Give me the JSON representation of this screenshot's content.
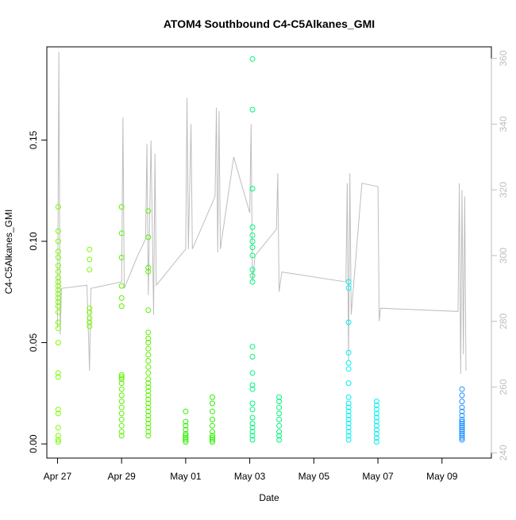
{
  "chart_data": {
    "type": "scatter",
    "title": "ATOM4 Southbound C4-C5Alkanes_GMI",
    "xlabel": "Date",
    "ylabel": "C4-C5Alkanes_GMI",
    "x_ticks": [
      "Apr 27",
      "Apr 29",
      "May 01",
      "May 03",
      "May 05",
      "May 07",
      "May 09"
    ],
    "y_ticks": [
      "0.00",
      "0.05",
      "0.10",
      "0.15"
    ],
    "y2_ticks": [
      "240",
      "260",
      "280",
      "300",
      "320",
      "340",
      "360"
    ],
    "xlim": [
      "2018-04-26T16:00",
      "2018-05-10T13:00"
    ],
    "ylim": [
      -0.007,
      0.196
    ],
    "y2lim": [
      238.4,
      363.5
    ],
    "grid": false,
    "legend": "none",
    "point_marker": "open-circle",
    "color_scale": "time: green -> cyan -> blue",
    "line_color": "#bebebe",
    "series": [
      {
        "color": "#7CFC00",
        "points": [
          [
            "2018-04-27T00:30",
            0.117
          ],
          [
            "2018-04-27T00:30",
            0.105
          ],
          [
            "2018-04-27T00:30",
            0.1
          ],
          [
            "2018-04-27T00:30",
            0.095
          ],
          [
            "2018-04-27T00:30",
            0.092
          ],
          [
            "2018-04-27T00:30",
            0.088
          ],
          [
            "2018-04-27T00:30",
            0.085
          ],
          [
            "2018-04-27T00:30",
            0.082
          ],
          [
            "2018-04-27T00:30",
            0.08
          ],
          [
            "2018-04-27T00:30",
            0.078
          ],
          [
            "2018-04-27T00:30",
            0.076
          ],
          [
            "2018-04-27T00:30",
            0.074
          ],
          [
            "2018-04-27T00:30",
            0.072
          ],
          [
            "2018-04-27T00:30",
            0.07
          ],
          [
            "2018-04-27T00:30",
            0.068
          ],
          [
            "2018-04-27T00:30",
            0.065
          ],
          [
            "2018-04-27T00:30",
            0.06
          ],
          [
            "2018-04-27T00:30",
            0.057
          ],
          [
            "2018-04-27T00:30",
            0.05
          ],
          [
            "2018-04-27T00:30",
            0.035
          ],
          [
            "2018-04-27T00:30",
            0.033
          ],
          [
            "2018-04-27T00:30",
            0.017
          ],
          [
            "2018-04-27T00:30",
            0.015
          ],
          [
            "2018-04-27T00:30",
            0.008
          ],
          [
            "2018-04-27T00:30",
            0.004
          ],
          [
            "2018-04-27T00:30",
            0.002
          ],
          [
            "2018-04-27T00:30",
            0.001
          ],
          [
            "2018-04-28T00:00",
            0.096
          ],
          [
            "2018-04-28T00:00",
            0.091
          ],
          [
            "2018-04-28T00:00",
            0.086
          ],
          [
            "2018-04-28T00:00",
            0.067
          ],
          [
            "2018-04-28T00:00",
            0.065
          ],
          [
            "2018-04-28T00:00",
            0.062
          ],
          [
            "2018-04-28T00:00",
            0.06
          ],
          [
            "2018-04-28T00:00",
            0.058
          ]
        ]
      },
      {
        "color": "#5CF200",
        "points": [
          [
            "2018-04-29T00:00",
            0.117
          ],
          [
            "2018-04-29T00:00",
            0.104
          ],
          [
            "2018-04-29T00:00",
            0.092
          ],
          [
            "2018-04-29T00:00",
            0.078
          ],
          [
            "2018-04-29T00:00",
            0.072
          ],
          [
            "2018-04-29T00:00",
            0.068
          ],
          [
            "2018-04-29T00:00",
            0.034
          ],
          [
            "2018-04-29T00:00",
            0.033
          ],
          [
            "2018-04-29T00:00",
            0.032
          ],
          [
            "2018-04-29T00:00",
            0.03
          ],
          [
            "2018-04-29T00:00",
            0.027
          ],
          [
            "2018-04-29T00:00",
            0.024
          ],
          [
            "2018-04-29T00:00",
            0.021
          ],
          [
            "2018-04-29T00:00",
            0.018
          ],
          [
            "2018-04-29T00:00",
            0.015
          ],
          [
            "2018-04-29T00:00",
            0.012
          ],
          [
            "2018-04-29T00:00",
            0.009
          ],
          [
            "2018-04-29T00:00",
            0.006
          ],
          [
            "2018-04-29T00:00",
            0.004
          ],
          [
            "2018-04-29T20:00",
            0.115
          ],
          [
            "2018-04-29T20:00",
            0.102
          ],
          [
            "2018-04-29T20:00",
            0.087
          ],
          [
            "2018-04-29T20:00",
            0.085
          ],
          [
            "2018-04-29T20:00",
            0.066
          ],
          [
            "2018-04-29T20:00",
            0.055
          ],
          [
            "2018-04-29T20:00",
            0.052
          ],
          [
            "2018-04-29T20:00",
            0.05
          ],
          [
            "2018-04-29T20:00",
            0.047
          ],
          [
            "2018-04-29T20:00",
            0.044
          ],
          [
            "2018-04-29T20:00",
            0.041
          ],
          [
            "2018-04-29T20:00",
            0.038
          ],
          [
            "2018-04-29T20:00",
            0.035
          ],
          [
            "2018-04-29T20:00",
            0.032
          ],
          [
            "2018-04-29T20:00",
            0.03
          ],
          [
            "2018-04-29T20:00",
            0.028
          ],
          [
            "2018-04-29T20:00",
            0.026
          ],
          [
            "2018-04-29T20:00",
            0.024
          ],
          [
            "2018-04-29T20:00",
            0.022
          ],
          [
            "2018-04-29T20:00",
            0.02
          ],
          [
            "2018-04-29T20:00",
            0.018
          ],
          [
            "2018-04-29T20:00",
            0.016
          ],
          [
            "2018-04-29T20:00",
            0.014
          ],
          [
            "2018-04-29T20:00",
            0.012
          ],
          [
            "2018-04-29T20:00",
            0.01
          ],
          [
            "2018-04-29T20:00",
            0.008
          ],
          [
            "2018-04-29T20:00",
            0.006
          ],
          [
            "2018-04-29T20:00",
            0.004
          ]
        ]
      },
      {
        "color": "#2CF000",
        "points": [
          [
            "2018-05-01T00:00",
            0.016
          ],
          [
            "2018-05-01T00:00",
            0.011
          ],
          [
            "2018-05-01T00:00",
            0.009
          ],
          [
            "2018-05-01T00:00",
            0.007
          ],
          [
            "2018-05-01T00:00",
            0.005
          ],
          [
            "2018-05-01T00:00",
            0.004
          ],
          [
            "2018-05-01T00:00",
            0.003
          ],
          [
            "2018-05-01T00:00",
            0.002
          ],
          [
            "2018-05-01T00:00",
            0.001
          ],
          [
            "2018-05-01T20:00",
            0.023
          ],
          [
            "2018-05-01T20:00",
            0.02
          ],
          [
            "2018-05-01T20:00",
            0.016
          ],
          [
            "2018-05-01T20:00",
            0.012
          ],
          [
            "2018-05-01T20:00",
            0.009
          ],
          [
            "2018-05-01T20:00",
            0.006
          ],
          [
            "2018-05-01T20:00",
            0.004
          ],
          [
            "2018-05-01T20:00",
            0.003
          ],
          [
            "2018-05-01T20:00",
            0.002
          ],
          [
            "2018-05-01T20:00",
            0.001
          ]
        ]
      },
      {
        "color": "#00F57A",
        "points": [
          [
            "2018-05-03T02:00",
            0.19
          ],
          [
            "2018-05-03T02:00",
            0.165
          ],
          [
            "2018-05-03T02:00",
            0.126
          ],
          [
            "2018-05-03T02:00",
            0.107
          ],
          [
            "2018-05-03T02:00",
            0.103
          ],
          [
            "2018-05-03T02:00",
            0.1
          ],
          [
            "2018-05-03T02:00",
            0.097
          ],
          [
            "2018-05-03T02:00",
            0.093
          ],
          [
            "2018-05-03T02:00",
            0.086
          ],
          [
            "2018-05-03T02:00",
            0.083
          ],
          [
            "2018-05-03T02:00",
            0.08
          ],
          [
            "2018-05-03T02:00",
            0.048
          ],
          [
            "2018-05-03T02:00",
            0.043
          ],
          [
            "2018-05-03T02:00",
            0.035
          ],
          [
            "2018-05-03T02:00",
            0.029
          ],
          [
            "2018-05-03T02:00",
            0.027
          ],
          [
            "2018-05-03T02:00",
            0.02
          ],
          [
            "2018-05-03T02:00",
            0.017
          ],
          [
            "2018-05-03T02:00",
            0.013
          ],
          [
            "2018-05-03T02:00",
            0.01
          ],
          [
            "2018-05-03T02:00",
            0.008
          ],
          [
            "2018-05-03T02:00",
            0.006
          ],
          [
            "2018-05-03T02:00",
            0.004
          ],
          [
            "2018-05-03T02:00",
            0.002
          ],
          [
            "2018-05-03T22:00",
            0.023
          ],
          [
            "2018-05-03T22:00",
            0.021
          ],
          [
            "2018-05-03T22:00",
            0.018
          ],
          [
            "2018-05-03T22:00",
            0.015
          ],
          [
            "2018-05-03T22:00",
            0.012
          ],
          [
            "2018-05-03T22:00",
            0.009
          ],
          [
            "2018-05-03T22:00",
            0.006
          ],
          [
            "2018-05-03T22:00",
            0.004
          ],
          [
            "2018-05-03T22:00",
            0.002
          ]
        ]
      },
      {
        "color": "#00F0F0",
        "points": [
          [
            "2018-05-06T02:00",
            0.08
          ],
          [
            "2018-05-06T02:00",
            0.077
          ],
          [
            "2018-05-06T02:00",
            0.06
          ],
          [
            "2018-05-06T02:00",
            0.045
          ],
          [
            "2018-05-06T02:00",
            0.04
          ],
          [
            "2018-05-06T02:00",
            0.037
          ],
          [
            "2018-05-06T02:00",
            0.03
          ],
          [
            "2018-05-06T02:00",
            0.023
          ],
          [
            "2018-05-06T02:00",
            0.02
          ],
          [
            "2018-05-06T02:00",
            0.018
          ],
          [
            "2018-05-06T02:00",
            0.016
          ],
          [
            "2018-05-06T02:00",
            0.014
          ],
          [
            "2018-05-06T02:00",
            0.012
          ],
          [
            "2018-05-06T02:00",
            0.01
          ],
          [
            "2018-05-06T02:00",
            0.008
          ],
          [
            "2018-05-06T02:00",
            0.006
          ],
          [
            "2018-05-06T02:00",
            0.004
          ],
          [
            "2018-05-06T02:00",
            0.002
          ],
          [
            "2018-05-06T23:00",
            0.021
          ],
          [
            "2018-05-06T23:00",
            0.019
          ],
          [
            "2018-05-06T23:00",
            0.017
          ],
          [
            "2018-05-06T23:00",
            0.015
          ],
          [
            "2018-05-06T23:00",
            0.013
          ],
          [
            "2018-05-06T23:00",
            0.011
          ],
          [
            "2018-05-06T23:00",
            0.009
          ],
          [
            "2018-05-06T23:00",
            0.007
          ],
          [
            "2018-05-06T23:00",
            0.005
          ],
          [
            "2018-05-06T23:00",
            0.003
          ],
          [
            "2018-05-06T23:00",
            0.001
          ]
        ]
      },
      {
        "color": "#1E90FF",
        "points": [
          [
            "2018-05-09T15:00",
            0.027
          ],
          [
            "2018-05-09T15:00",
            0.024
          ],
          [
            "2018-05-09T15:00",
            0.021
          ],
          [
            "2018-05-09T15:00",
            0.018
          ],
          [
            "2018-05-09T15:00",
            0.016
          ],
          [
            "2018-05-09T15:00",
            0.014
          ],
          [
            "2018-05-09T15:00",
            0.012
          ],
          [
            "2018-05-09T15:00",
            0.011
          ],
          [
            "2018-05-09T15:00",
            0.01
          ],
          [
            "2018-05-09T15:00",
            0.009
          ],
          [
            "2018-05-09T15:00",
            0.008
          ],
          [
            "2018-05-09T15:00",
            0.007
          ],
          [
            "2018-05-09T15:00",
            0.006
          ],
          [
            "2018-05-09T15:00",
            0.005
          ],
          [
            "2018-05-09T15:00",
            0.004
          ],
          [
            "2018-05-09T15:00",
            0.003
          ],
          [
            "2018-05-09T15:00",
            0.002
          ]
        ]
      }
    ],
    "altitude_line": [
      [
        "2018-04-27T00:00",
        278
      ],
      [
        "2018-04-27T01:00",
        362
      ],
      [
        "2018-04-27T02:00",
        276
      ],
      [
        "2018-04-27T03:00",
        290
      ],
      [
        "2018-04-27T22:00",
        291
      ],
      [
        "2018-04-28T00:00",
        265
      ],
      [
        "2018-04-28T01:00",
        290
      ],
      [
        "2018-04-29T00:00",
        292
      ],
      [
        "2018-04-29T01:00",
        342
      ],
      [
        "2018-04-29T02:00",
        290
      ],
      [
        "2018-04-29T08:00",
        296
      ],
      [
        "2018-04-29T12:00",
        300
      ],
      [
        "2018-04-29T18:00",
        305
      ],
      [
        "2018-04-29T19:00",
        334
      ],
      [
        "2018-04-29T20:00",
        288
      ],
      [
        "2018-04-29T22:00",
        335
      ],
      [
        "2018-04-30T00:00",
        282
      ],
      [
        "2018-04-30T01:00",
        331
      ],
      [
        "2018-04-30T02:00",
        291
      ],
      [
        "2018-05-01T00:00",
        302
      ],
      [
        "2018-05-01T01:00",
        348
      ],
      [
        "2018-05-01T02:00",
        302
      ],
      [
        "2018-05-01T04:00",
        340
      ],
      [
        "2018-05-01T05:00",
        302
      ],
      [
        "2018-05-01T22:00",
        318
      ],
      [
        "2018-05-01T23:00",
        345
      ],
      [
        "2018-05-02T00:00",
        301
      ],
      [
        "2018-05-02T01:00",
        344
      ],
      [
        "2018-05-02T02:00",
        302
      ],
      [
        "2018-05-02T12:00",
        330
      ],
      [
        "2018-05-03T00:00",
        313
      ],
      [
        "2018-05-03T01:00",
        340
      ],
      [
        "2018-05-03T02:00",
        292
      ],
      [
        "2018-05-03T04:00",
        300
      ],
      [
        "2018-05-03T20:00",
        308
      ],
      [
        "2018-05-03T21:00",
        325
      ],
      [
        "2018-05-03T22:00",
        289
      ],
      [
        "2018-05-04T00:00",
        295
      ],
      [
        "2018-05-06T00:00",
        292
      ],
      [
        "2018-05-06T01:00",
        322
      ],
      [
        "2018-05-06T02:00",
        268
      ],
      [
        "2018-05-06T03:00",
        325
      ],
      [
        "2018-05-06T04:00",
        282
      ],
      [
        "2018-05-06T12:00",
        322
      ],
      [
        "2018-05-07T00:00",
        321
      ],
      [
        "2018-05-07T01:00",
        280
      ],
      [
        "2018-05-07T02:00",
        284
      ],
      [
        "2018-05-09T12:00",
        283
      ],
      [
        "2018-05-09T13:00",
        322
      ],
      [
        "2018-05-09T14:00",
        264
      ],
      [
        "2018-05-09T15:00",
        320
      ],
      [
        "2018-05-09T16:00",
        270
      ],
      [
        "2018-05-09T17:00",
        318
      ],
      [
        "2018-05-09T18:00",
        265
      ]
    ]
  }
}
